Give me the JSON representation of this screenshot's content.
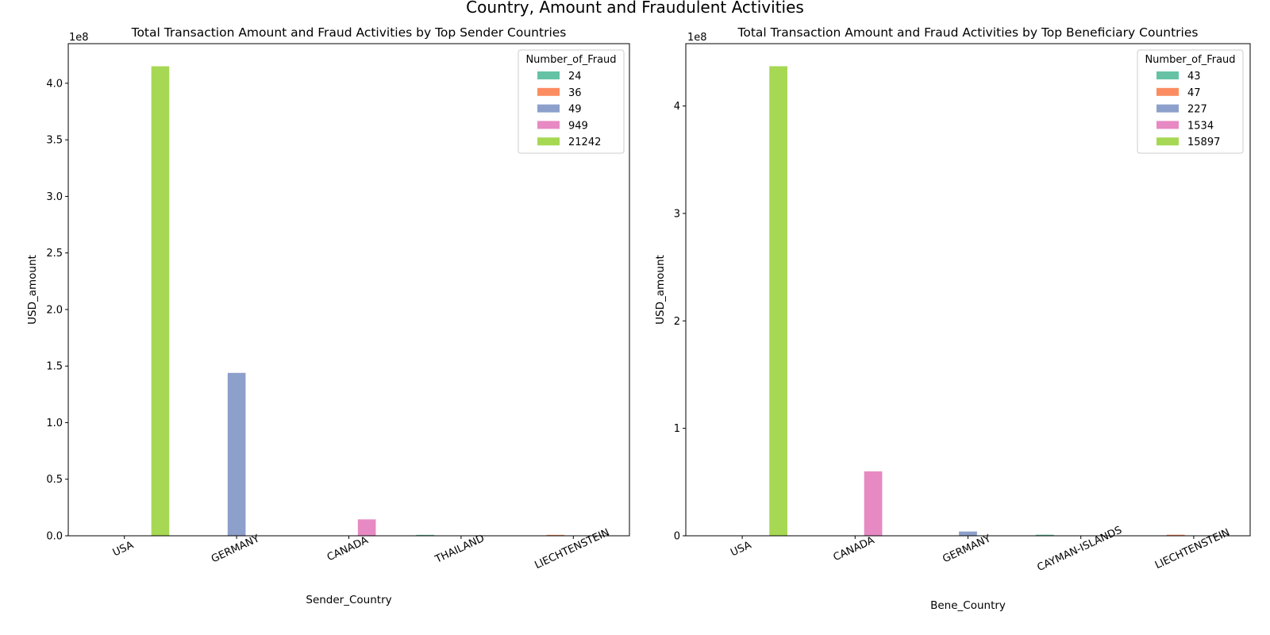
{
  "figure": {
    "title": "Country, Amount and Fraudulent Activities"
  },
  "colors": [
    "#66c2a5",
    "#fc8d62",
    "#8da0cb",
    "#e78ac3",
    "#a6d854"
  ],
  "chart_data": [
    {
      "type": "bar",
      "title": "Total Transaction Amount and Fraud Activities by Top Sender Countries",
      "xlabel": "Sender_Country",
      "ylabel": "USD_amount",
      "y_offset_label": "1e8",
      "y_scale": 100000000,
      "ylim": [
        0,
        4.35
      ],
      "yticks": [
        0.0,
        0.5,
        1.0,
        1.5,
        2.0,
        2.5,
        3.0,
        3.5,
        4.0
      ],
      "ytick_labels": [
        "0.0",
        "0.5",
        "1.0",
        "1.5",
        "2.0",
        "2.5",
        "3.0",
        "3.5",
        "4.0"
      ],
      "categories": [
        "USA",
        "GERMANY",
        "CANADA",
        "THAILAND",
        "LIECHTENSTEIN"
      ],
      "legend_title": "Number_of_Fraud",
      "legend_position": "top-right",
      "grid": false,
      "series": [
        {
          "name": "24",
          "values": [
            0,
            0,
            0,
            0.008,
            0
          ]
        },
        {
          "name": "36",
          "values": [
            0,
            0,
            0,
            0,
            0.008
          ]
        },
        {
          "name": "49",
          "values": [
            0,
            1.44,
            0,
            0,
            0
          ]
        },
        {
          "name": "949",
          "values": [
            0,
            0,
            0.145,
            0,
            0
          ]
        },
        {
          "name": "21242",
          "values": [
            4.15,
            0,
            0,
            0,
            0
          ]
        }
      ]
    },
    {
      "type": "bar",
      "title": "Total Transaction Amount and Fraud Activities by Top Beneficiary Countries",
      "xlabel": "Bene_Country",
      "ylabel": "USD_amount",
      "y_offset_label": "1e8",
      "y_scale": 100000000,
      "ylim": [
        0,
        4.58
      ],
      "yticks": [
        0,
        1,
        2,
        3,
        4
      ],
      "ytick_labels": [
        "0",
        "1",
        "2",
        "3",
        "4"
      ],
      "categories": [
        "USA",
        "CANADA",
        "GERMANY",
        "CAYMAN-ISLANDS",
        "LIECHTENSTEIN"
      ],
      "legend_title": "Number_of_Fraud",
      "legend_position": "top-right",
      "grid": false,
      "series": [
        {
          "name": "43",
          "values": [
            0,
            0,
            0,
            0.01,
            0
          ]
        },
        {
          "name": "47",
          "values": [
            0,
            0,
            0,
            0,
            0.01
          ]
        },
        {
          "name": "227",
          "values": [
            0,
            0,
            0.04,
            0,
            0
          ]
        },
        {
          "name": "1534",
          "values": [
            0,
            0.6,
            0,
            0,
            0
          ]
        },
        {
          "name": "15897",
          "values": [
            4.37,
            0,
            0,
            0,
            0
          ]
        }
      ]
    }
  ]
}
